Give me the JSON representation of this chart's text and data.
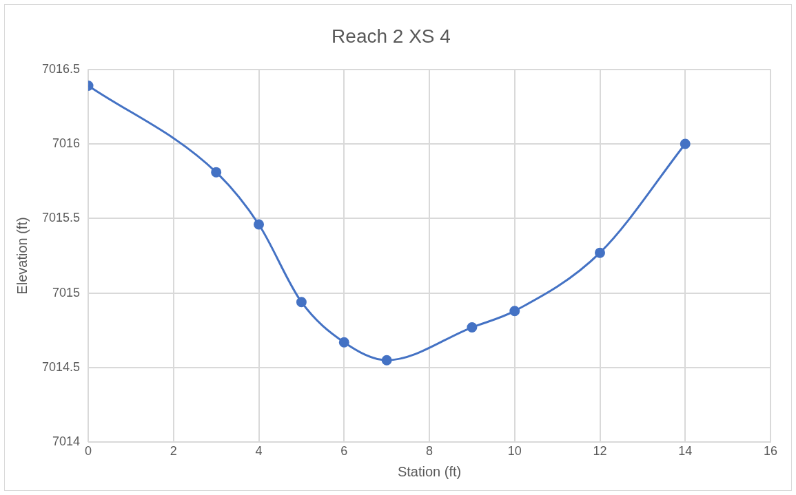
{
  "chart_data": {
    "type": "line",
    "title": "Reach 2 XS 4",
    "xlabel": "Station (ft)",
    "ylabel": "Elevation (ft)",
    "x": [
      0,
      3,
      4,
      5,
      6,
      7,
      9,
      10,
      12,
      14
    ],
    "series": [
      {
        "color": "#4472c4",
        "values": [
          7016.39,
          7015.81,
          7015.46,
          7014.94,
          7014.67,
          7014.55,
          7014.77,
          7014.88,
          7015.27,
          7016.0
        ]
      }
    ],
    "xlim": [
      0,
      16
    ],
    "xticks": [
      0,
      2,
      4,
      6,
      8,
      10,
      12,
      14,
      16
    ],
    "ylim": [
      7014,
      7016.5
    ],
    "yticks": [
      7014,
      7014.5,
      7015,
      7015.5,
      7016,
      7016.5
    ],
    "grid": true,
    "legend": false,
    "marker": "circle",
    "line_style": "solid"
  }
}
